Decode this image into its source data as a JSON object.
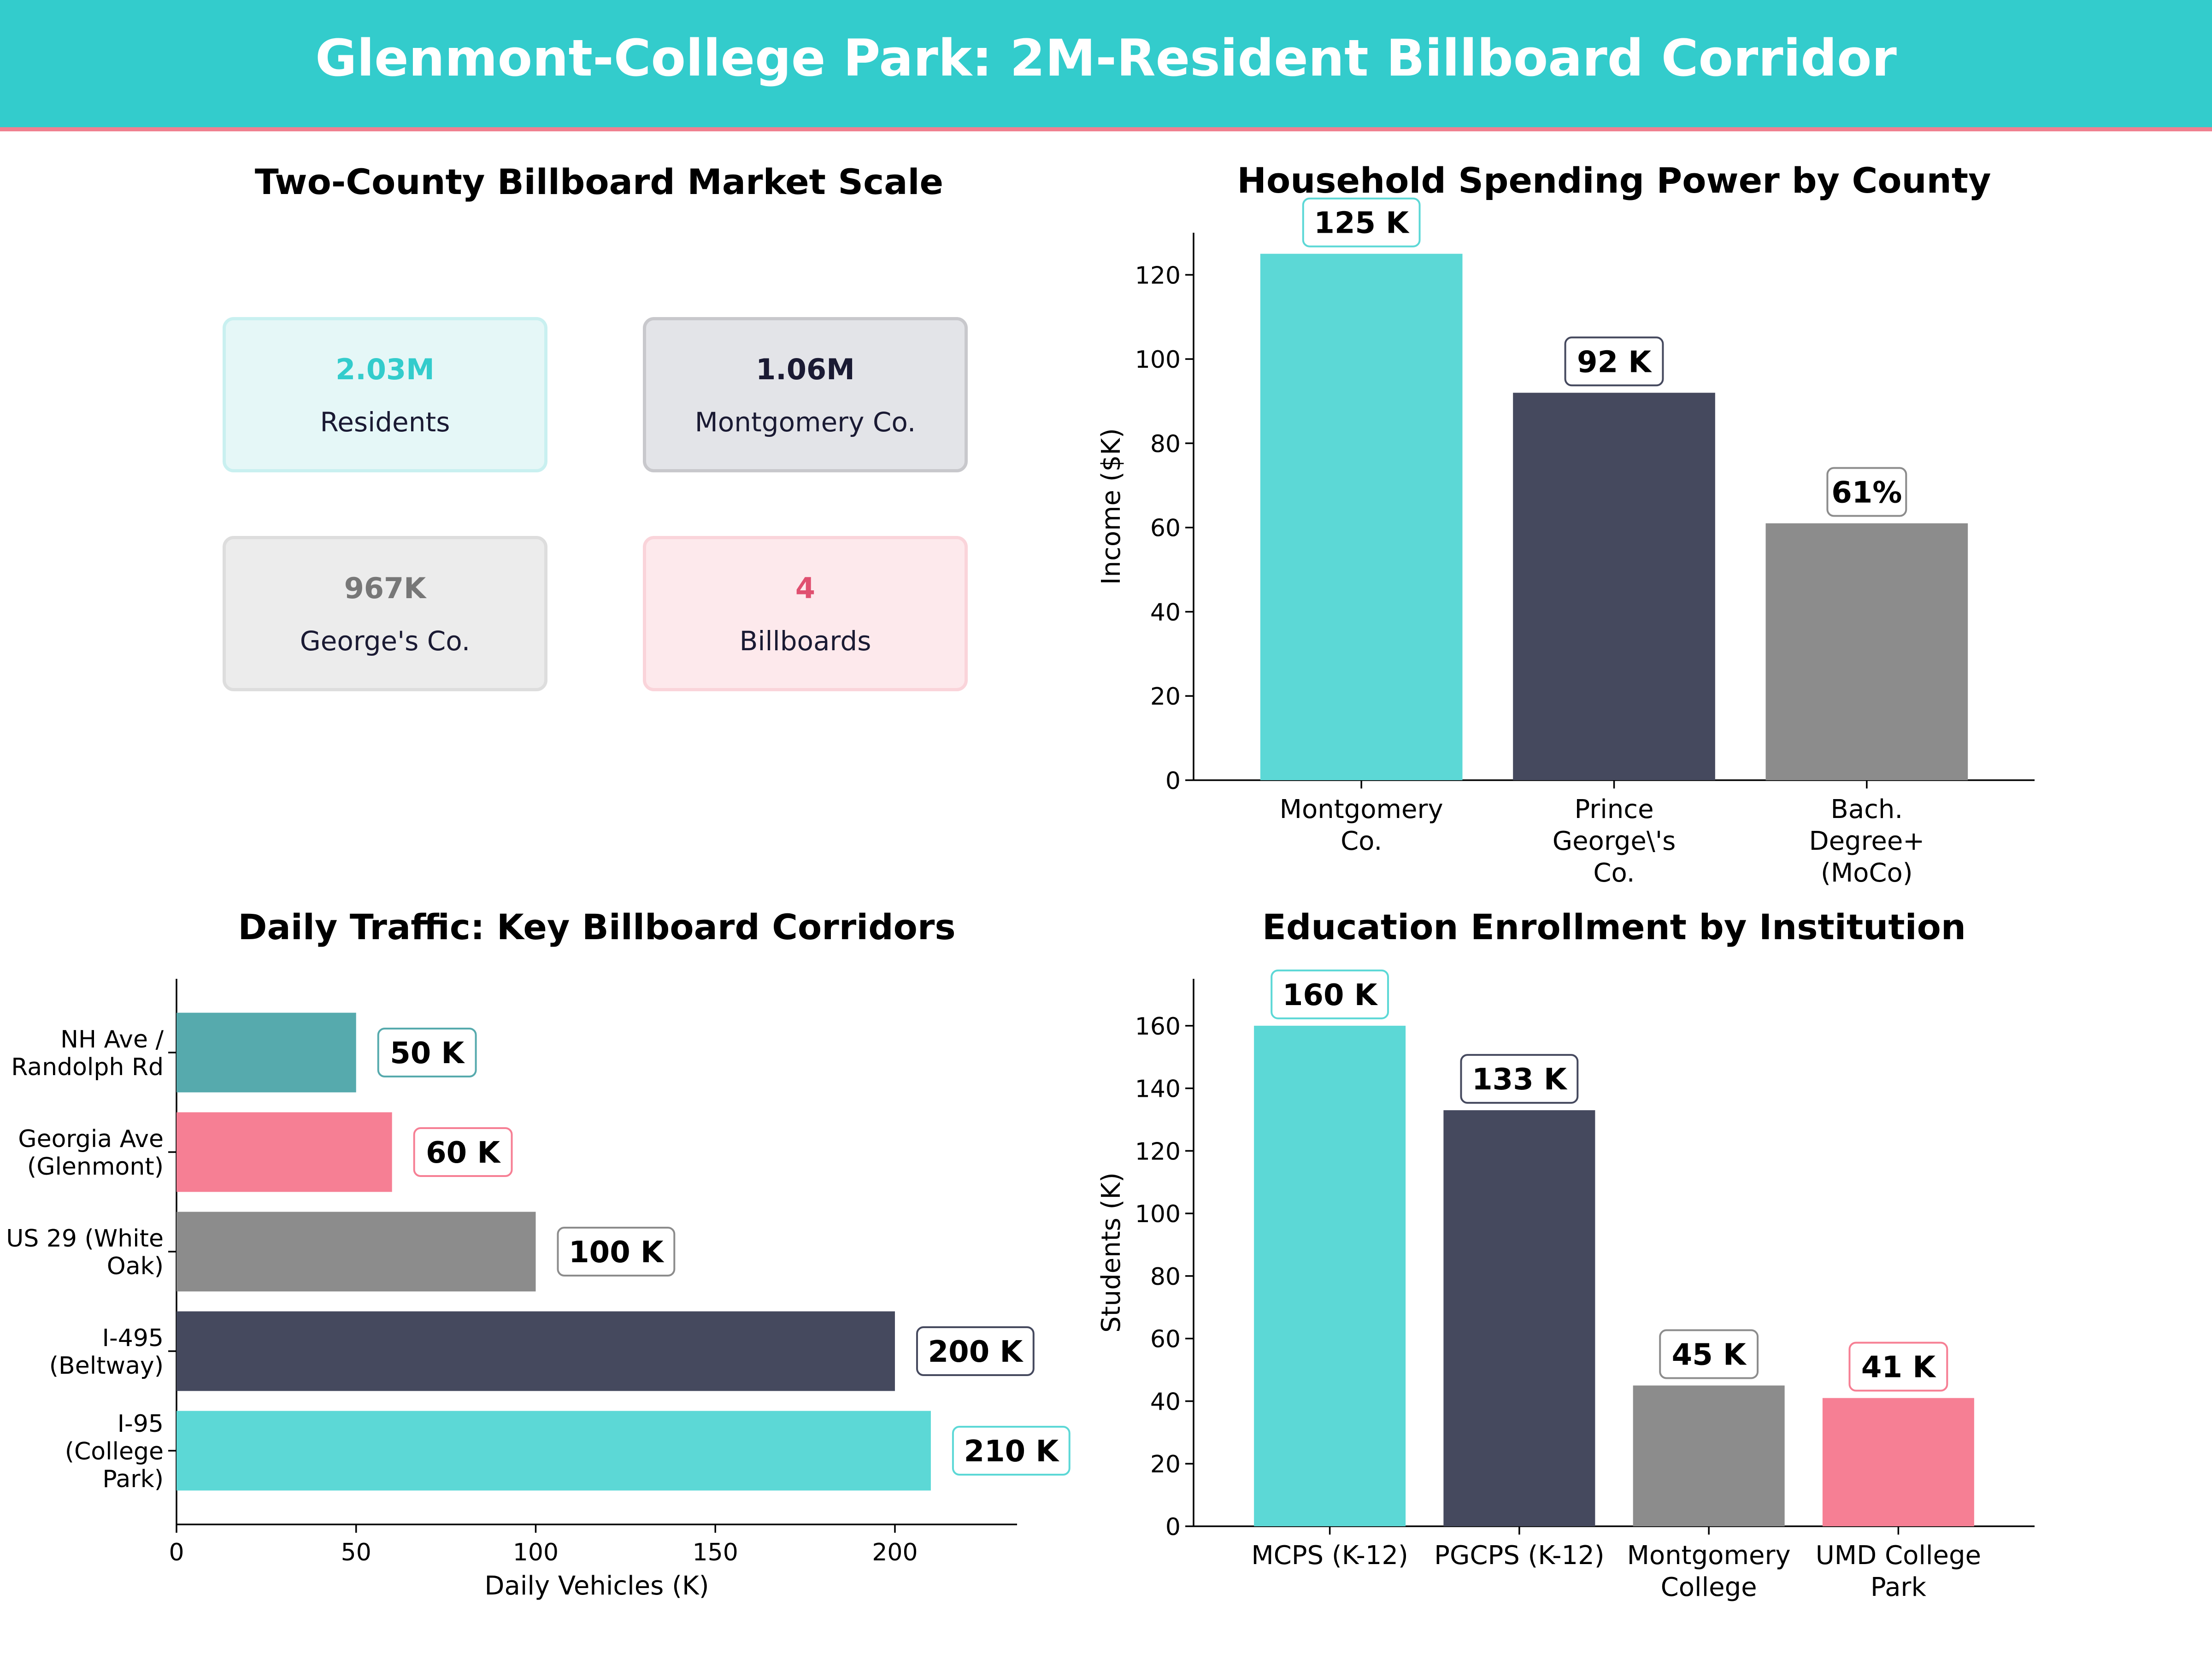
{
  "header": {
    "title": "Glenmont-College Park: 2M-Resident Billboard Corridor",
    "background": "#33cccc",
    "accent_line": "#f08090"
  },
  "kpi": {
    "title": "Two-County Billboard Market Scale",
    "cards": [
      {
        "value": "2.03M",
        "label": "Residents",
        "value_color": "#33cccc",
        "bg": "#e5f7f7",
        "border": "#c9f0f0"
      },
      {
        "value": "1.06M",
        "label": "Montgomery Co.",
        "value_color": "#1a1a33",
        "bg": "#e3e4e8",
        "border": "#c8c8cc"
      },
      {
        "value": "967K",
        "label": "George's Co.",
        "value_color": "#777777",
        "bg": "#ececec",
        "border": "#dddddd"
      },
      {
        "value": "4",
        "label": "Billboards",
        "value_color": "#e05070",
        "bg": "#fde9ec",
        "border": "#fad4da"
      }
    ]
  },
  "chart_data": [
    {
      "id": "spending",
      "type": "bar",
      "title": "Household Spending Power by County",
      "ylabel": "Income ($K)",
      "xlabel": "",
      "ylim": [
        0,
        130
      ],
      "yticks": [
        0,
        20,
        40,
        60,
        80,
        100,
        120
      ],
      "categories": [
        "Montgomery\nCo.",
        "Prince\nGeorge\\'s\nCo.",
        "Bach.\nDegree+\n(MoCo)"
      ],
      "values": [
        125,
        92,
        61
      ],
      "data_labels": [
        "125 K",
        "92 K",
        "61%"
      ],
      "colors": [
        "#5cd8d6",
        "#45495e",
        "#8c8c8c"
      ]
    },
    {
      "id": "traffic",
      "type": "bar",
      "orientation": "horizontal",
      "title": "Daily Traffic: Key Billboard Corridors",
      "xlabel": "Daily Vehicles (K)",
      "ylabel": "",
      "xlim": [
        0,
        234
      ],
      "xticks": [
        0,
        50,
        100,
        150,
        200
      ],
      "categories": [
        "NH Ave /\nRandolph Rd",
        "Georgia Ave\n(Glenmont)",
        "US 29 (White\nOak)",
        "I-495\n(Beltway)",
        "I-95\n(College\nPark)"
      ],
      "values": [
        50,
        60,
        100,
        200,
        210
      ],
      "data_labels": [
        "50 K",
        "60 K",
        "100 K",
        "200 K",
        "210 K"
      ],
      "colors": [
        "#56aaad",
        "#f67f94",
        "#8c8c8c",
        "#45495e",
        "#5cd8d6"
      ]
    },
    {
      "id": "enrollment",
      "type": "bar",
      "title": "Education Enrollment by Institution",
      "ylabel": "Students (K)",
      "xlabel": "",
      "ylim": [
        0,
        175
      ],
      "yticks": [
        0,
        20,
        40,
        60,
        80,
        100,
        120,
        140,
        160
      ],
      "categories": [
        "MCPS (K-12)",
        "PGCPS (K-12)",
        "Montgomery\nCollege",
        "UMD College\nPark"
      ],
      "values": [
        160,
        133,
        45,
        41
      ],
      "data_labels": [
        "160 K",
        "133 K",
        "45 K",
        "41 K"
      ],
      "colors": [
        "#5cd8d6",
        "#45495e",
        "#8c8c8c",
        "#f67f94"
      ]
    }
  ]
}
